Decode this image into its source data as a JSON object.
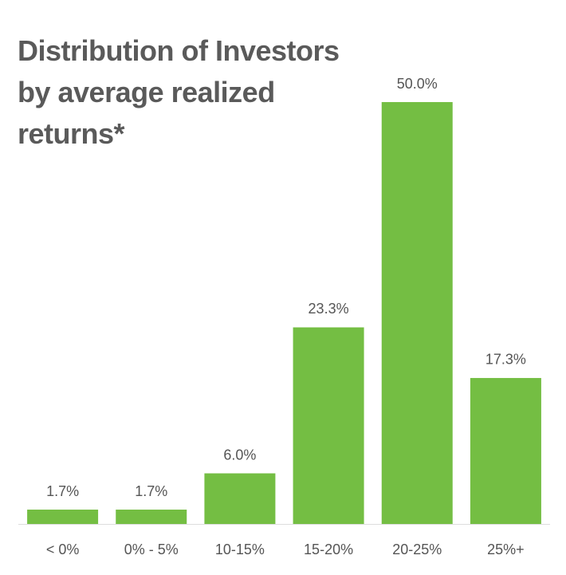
{
  "chart_data": {
    "type": "bar",
    "title": "Distribution of Investors by average realized returns*",
    "categories": [
      "< 0%",
      "0% - 5%",
      "10-15%",
      "15-20%",
      "20-25%",
      "25%+"
    ],
    "values": [
      1.7,
      1.7,
      6.0,
      23.3,
      50.0,
      17.3
    ],
    "value_labels": [
      "1.7%",
      "1.7%",
      "6.0%",
      "23.3%",
      "50.0%",
      "17.3%"
    ],
    "color": "#74be43"
  }
}
